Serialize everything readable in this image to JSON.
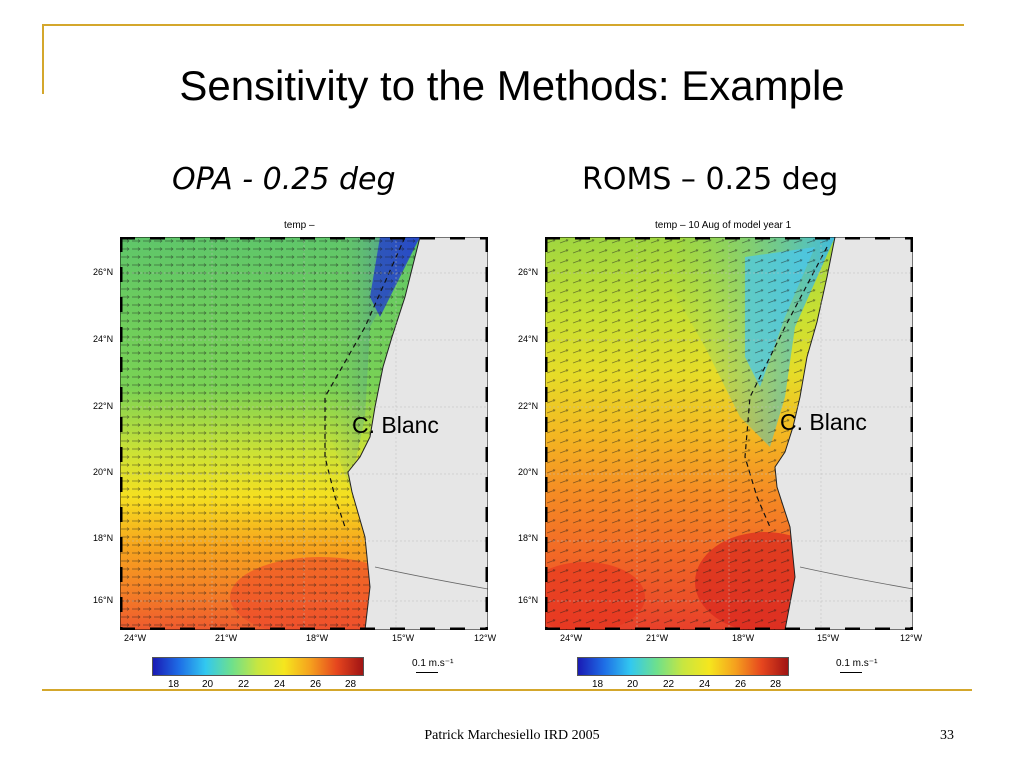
{
  "slide": {
    "title": "Sensitivity to the Methods: Example",
    "footer": "Patrick Marchesiello IRD 2005",
    "page_number": "33",
    "frame_color": "#d4a72c"
  },
  "maps": [
    {
      "header": "OPA - 0.25 deg",
      "map_title": "temp –",
      "cape_label": "C. Blanc",
      "lat_labels": [
        "26°N",
        "24°N",
        "22°N",
        "20°N",
        "18°N",
        "16°N"
      ],
      "lon_labels": [
        "24°W",
        "21°W",
        "18°W",
        "15°W",
        "12°W"
      ],
      "colorbar_ticks": [
        "18",
        "20",
        "22",
        "24",
        "26",
        "28"
      ],
      "scale_label": "0.1 m.s⁻¹"
    },
    {
      "header": "ROMS – 0.25 deg",
      "map_title": "temp – 10 Aug of model year 1",
      "cape_label": "C. Blanc",
      "lat_labels": [
        "26°N",
        "24°N",
        "22°N",
        "20°N",
        "18°N",
        "16°N"
      ],
      "lon_labels": [
        "24°W",
        "21°W",
        "18°W",
        "15°W",
        "12°W"
      ],
      "colorbar_ticks": [
        "18",
        "20",
        "22",
        "24",
        "26",
        "28"
      ],
      "scale_label": "0.1 m.s⁻¹"
    }
  ]
}
